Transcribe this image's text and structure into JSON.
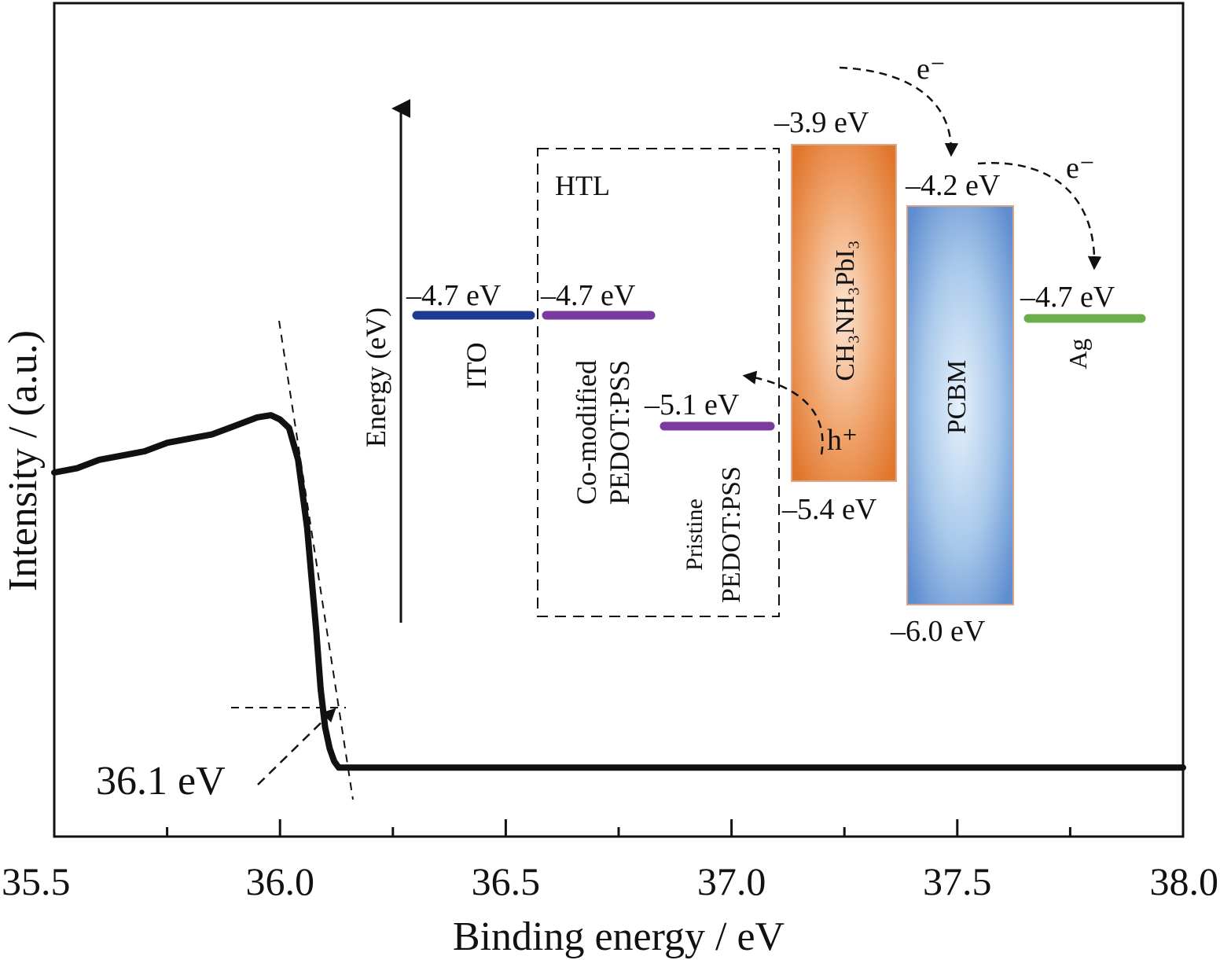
{
  "chart_data": {
    "type": "line",
    "xlabel": "Binding energy / eV",
    "ylabel": "Intensity / (a.u.)",
    "xlim": [
      35.5,
      38.0
    ],
    "ylim": [
      0,
      1
    ],
    "xticks": [
      "35.5",
      "36.0",
      "36.5",
      "37.0",
      "37.5",
      "38.0"
    ],
    "minor_ticks": [
      35.75,
      36.25,
      36.75,
      37.25,
      37.75
    ],
    "grid": false,
    "series": [
      {
        "name": "",
        "color": "#111111",
        "x": [
          35.5,
          35.55,
          35.6,
          35.65,
          35.7,
          35.75,
          35.8,
          35.85,
          35.9,
          35.95,
          35.98,
          36.0,
          36.02,
          36.04,
          36.06,
          36.07,
          36.08,
          36.09,
          36.1,
          36.11,
          36.12,
          36.13,
          36.15,
          36.2,
          36.5,
          37.0,
          37.5,
          38.0
        ],
        "y": [
          0.85,
          0.86,
          0.88,
          0.89,
          0.9,
          0.92,
          0.93,
          0.94,
          0.96,
          0.98,
          0.985,
          0.975,
          0.955,
          0.88,
          0.72,
          0.6,
          0.48,
          0.34,
          0.25,
          0.2,
          0.17,
          0.155,
          0.155,
          0.155,
          0.155,
          0.155,
          0.155,
          0.155
        ]
      }
    ],
    "annotation": {
      "text": "36.1 eV",
      "x": 36.13,
      "y": 0.155
    }
  },
  "inset": {
    "axis_label": "Energy (eV)",
    "htl_label": "HTL",
    "ito": {
      "level": "–4.7 eV",
      "name": "ITO",
      "color": "#1f3a93"
    },
    "comod": {
      "level": "–4.7 eV",
      "name_line1": "Co-modified",
      "name_line2": "PEDOT:PSS",
      "color": "#7a3aa0"
    },
    "pristine": {
      "level": "–5.1 eV",
      "name_line1": "Pristine",
      "name_line2": "PEDOT:PSS",
      "color": "#7a3aa0"
    },
    "perovskite": {
      "top": "–3.9 eV",
      "bottom": "–5.4 eV",
      "name": "CH₃NH₃PbI₃",
      "color": "#e07a30"
    },
    "pcbm": {
      "top": "–4.2 eV",
      "bottom": "–6.0 eV",
      "name": "PCBM",
      "color": "#5b8fd0"
    },
    "ag": {
      "level": "–4.7 eV",
      "name": "Ag",
      "color": "#6aaf4c"
    },
    "electron_label": "e⁻",
    "hole_label": "h⁺"
  }
}
